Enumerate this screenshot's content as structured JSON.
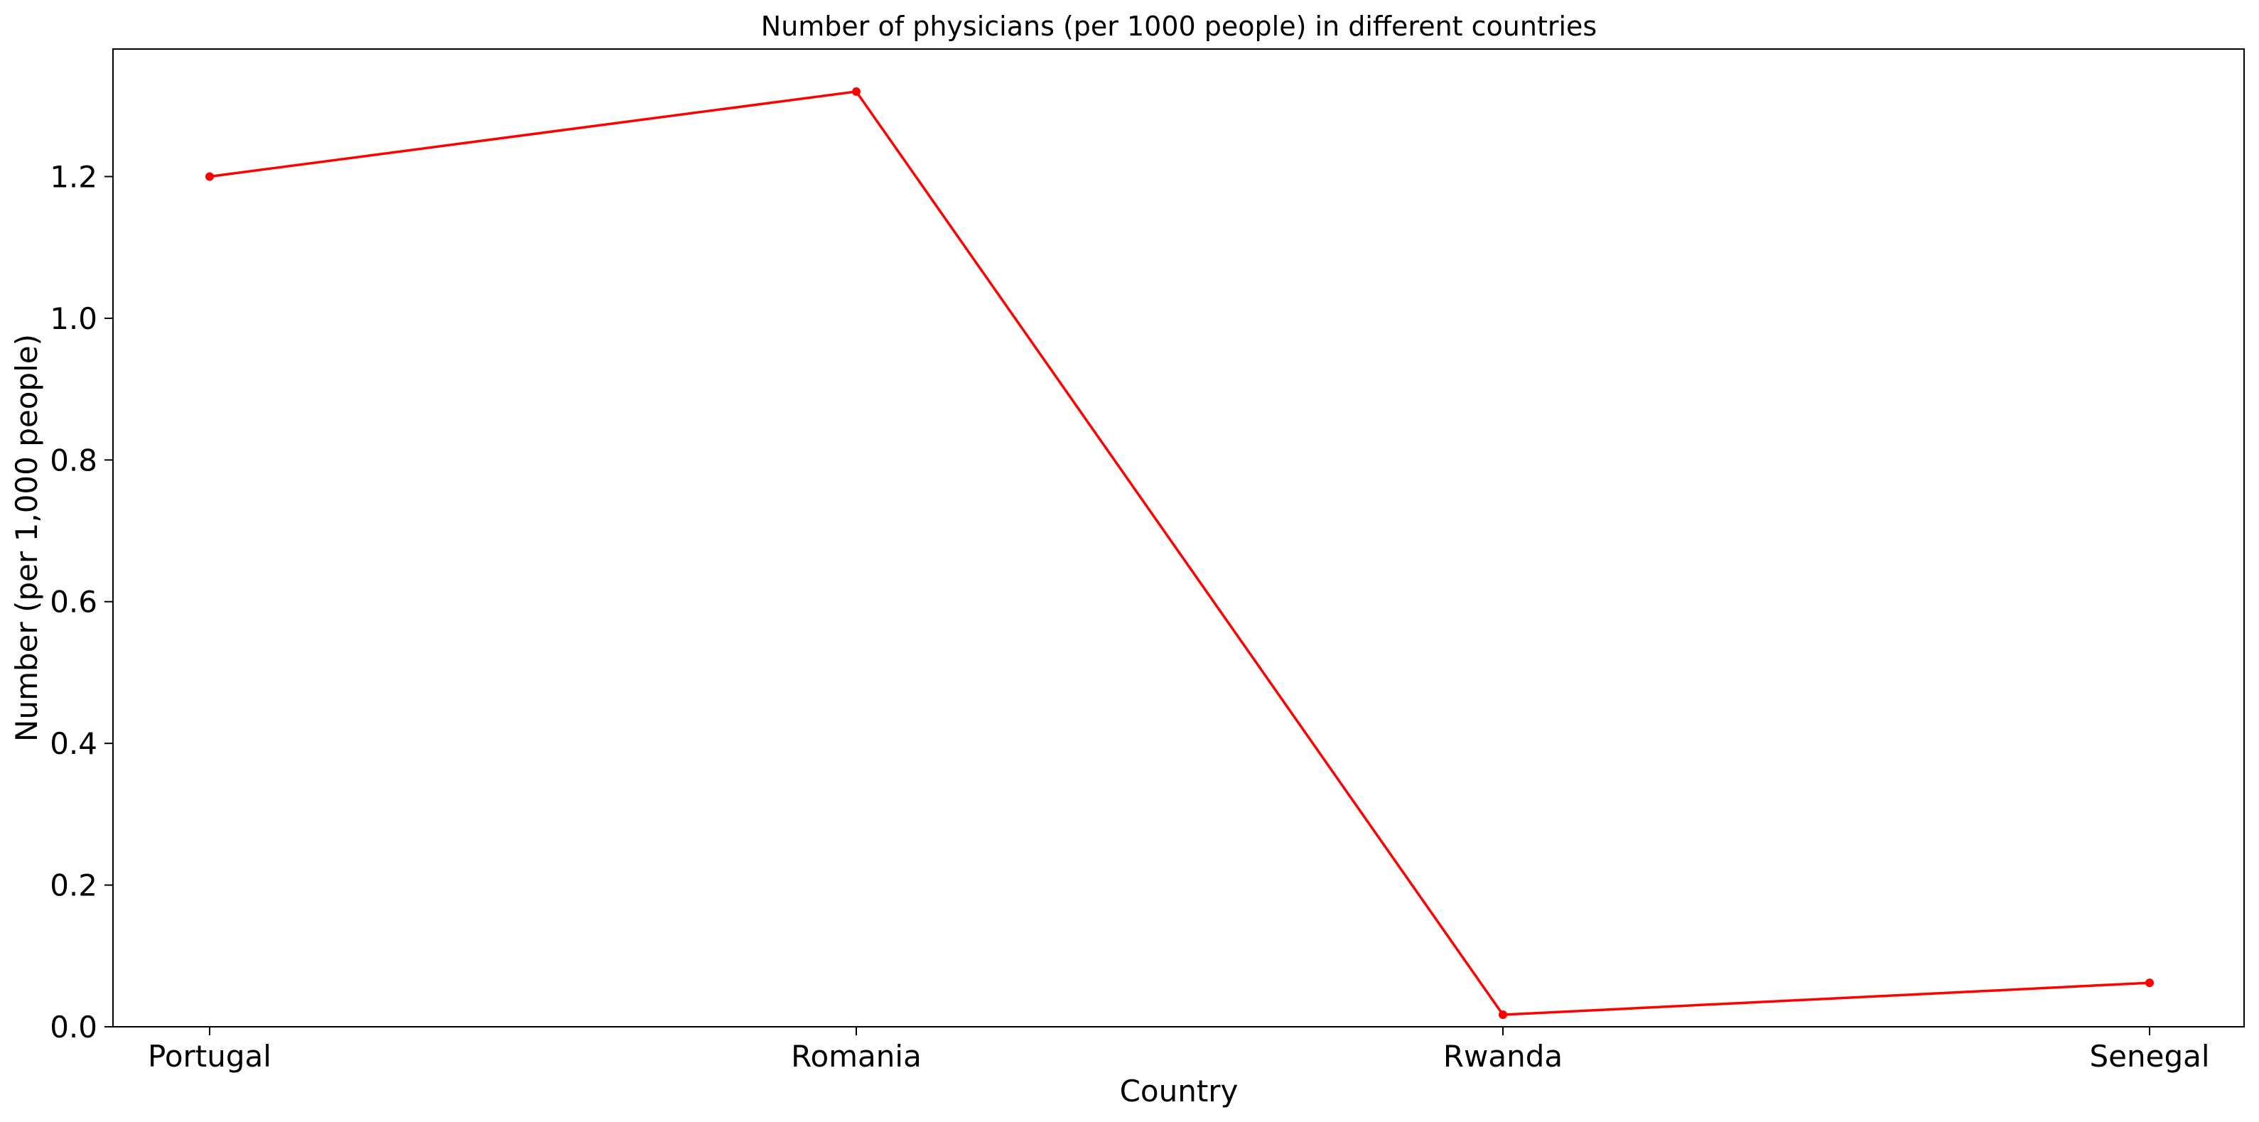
{
  "chart_data": {
    "type": "line",
    "title": "Number of physicians (per 1000 people) in different countries",
    "xlabel": "Country",
    "ylabel": "Number (per 1,000 people)",
    "categories": [
      "Portugal",
      "Romania",
      "Rwanda",
      "Senegal"
    ],
    "series": [
      {
        "values": [
          1.2,
          1.32,
          0.017,
          0.062
        ],
        "color": "#ff0000",
        "marker": "circle"
      }
    ],
    "ylim": [
      0,
      1.38
    ],
    "yticks": [
      0.0,
      0.2,
      0.4,
      0.6,
      0.8,
      1.0,
      1.2
    ],
    "ytick_labels": [
      "0.0",
      "0.2",
      "0.4",
      "0.6",
      "0.8",
      "1.0",
      "1.2"
    ],
    "grid": false,
    "legend": "none"
  }
}
